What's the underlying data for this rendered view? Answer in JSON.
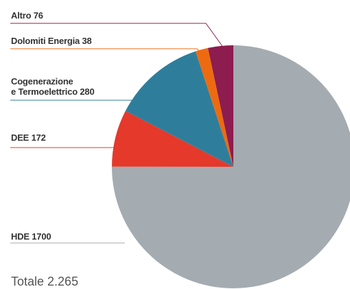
{
  "chart_data": {
    "type": "pie",
    "categories": [
      "HDE",
      "DEE",
      "Cogenerazione\ne Termoelettrico",
      "Dolomiti Energia",
      "Altro"
    ],
    "values": [
      1700,
      172,
      280,
      38,
      76
    ],
    "colors": [
      "#a4abb1",
      "#e4392b",
      "#2e7e9b",
      "#ee6a10",
      "#8d1c4f"
    ],
    "total": "Totale 2.265"
  }
}
